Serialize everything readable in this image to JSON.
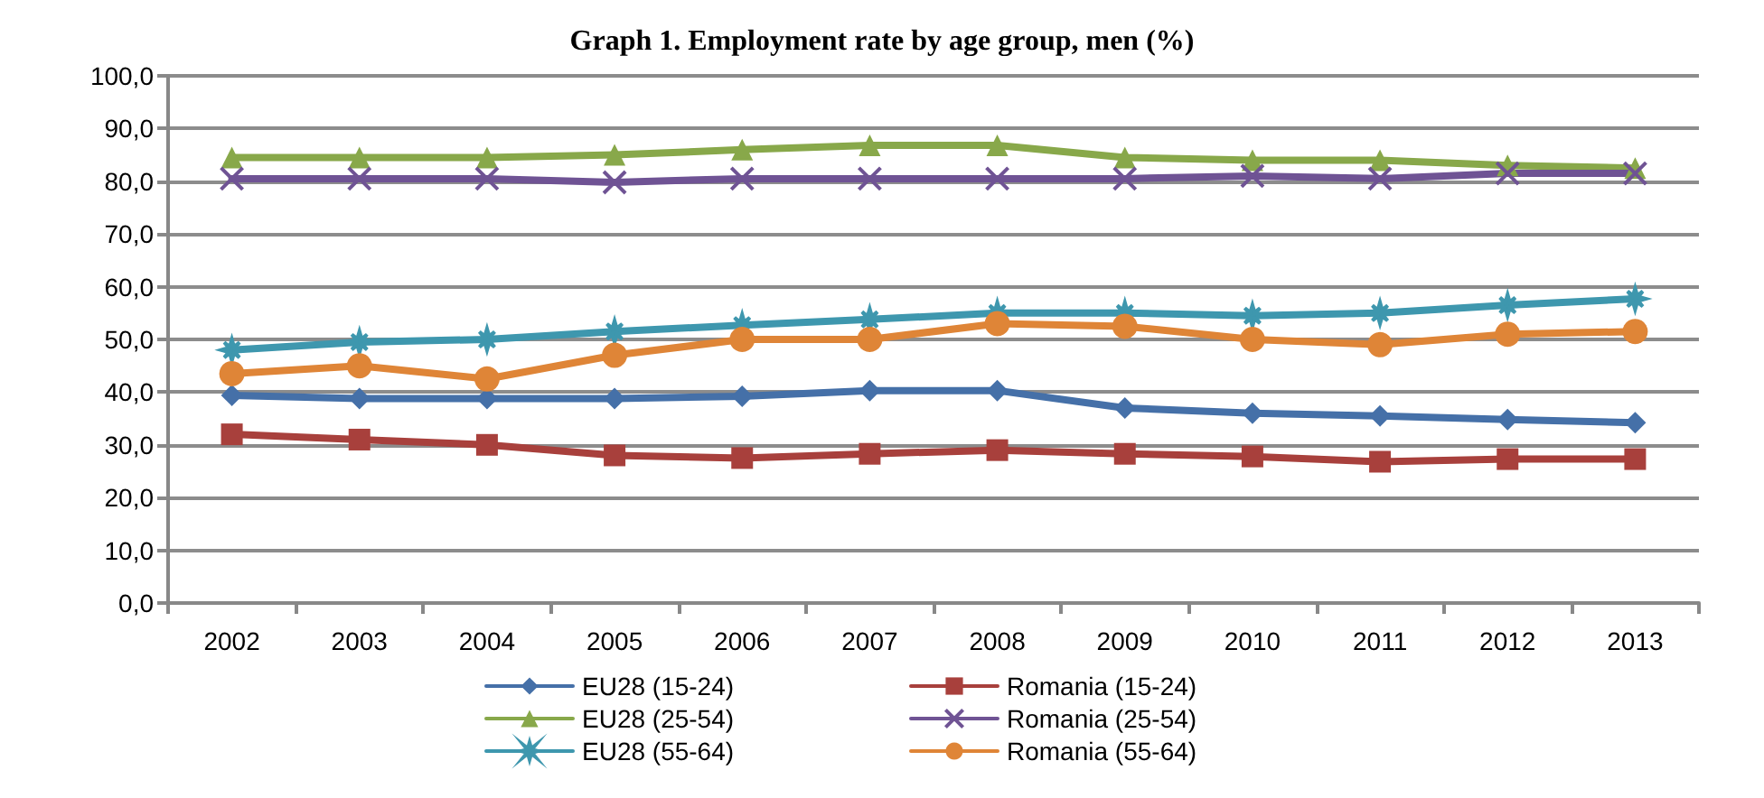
{
  "chart_data": {
    "type": "line",
    "title": "Graph 1. Employment rate by age group, men (%)",
    "categories": [
      "2002",
      "2003",
      "2004",
      "2005",
      "2006",
      "2007",
      "2008",
      "2009",
      "2010",
      "2011",
      "2012",
      "2013"
    ],
    "series": [
      {
        "name": "EU28 (15-24)",
        "color": "#4570a8",
        "marker": "diamond",
        "values": [
          39.4,
          38.8,
          38.8,
          38.8,
          39.2,
          40.3,
          40.3,
          37.0,
          36.0,
          35.5,
          34.8,
          34.2
        ]
      },
      {
        "name": "Romania (15-24)",
        "color": "#a8403c",
        "marker": "square",
        "values": [
          32.0,
          31.0,
          30.0,
          28.0,
          27.5,
          28.3,
          29.0,
          28.3,
          27.8,
          26.8,
          27.3,
          27.3
        ]
      },
      {
        "name": "EU28 (25-54)",
        "color": "#88a84a",
        "marker": "triangle",
        "values": [
          84.5,
          84.5,
          84.5,
          85.0,
          86.0,
          86.8,
          86.8,
          84.5,
          84.0,
          84.0,
          83.0,
          82.5
        ]
      },
      {
        "name": "Romania (25-54)",
        "color": "#6f5394",
        "marker": "cross",
        "values": [
          80.5,
          80.5,
          80.5,
          79.8,
          80.5,
          80.5,
          80.5,
          80.5,
          81.0,
          80.5,
          81.5,
          81.5
        ]
      },
      {
        "name": "EU28 (55-64)",
        "color": "#3e97ae",
        "marker": "star",
        "values": [
          48.0,
          49.5,
          50.0,
          51.5,
          52.7,
          53.8,
          55.0,
          55.0,
          54.5,
          55.0,
          56.5,
          57.7
        ]
      },
      {
        "name": "Romania (55-64)",
        "color": "#df8537",
        "marker": "circle",
        "values": [
          43.5,
          45.0,
          42.5,
          47.0,
          50.0,
          50.0,
          53.0,
          52.5,
          50.0,
          49.0,
          51.0,
          51.5
        ]
      }
    ],
    "ylim": [
      0,
      100
    ],
    "yticks": [
      {
        "value": 0,
        "label": "0,0"
      },
      {
        "value": 10,
        "label": "10,0"
      },
      {
        "value": 20,
        "label": "20,0"
      },
      {
        "value": 30,
        "label": "30,0"
      },
      {
        "value": 40,
        "label": "40,0"
      },
      {
        "value": 50,
        "label": "50,0"
      },
      {
        "value": 60,
        "label": "60,0"
      },
      {
        "value": 70,
        "label": "70,0"
      },
      {
        "value": 80,
        "label": "80,0"
      },
      {
        "value": 90,
        "label": "90,0"
      },
      {
        "value": 100,
        "label": "100,0"
      }
    ],
    "grid": "y",
    "legend": "bottom",
    "line_style": "solid"
  }
}
